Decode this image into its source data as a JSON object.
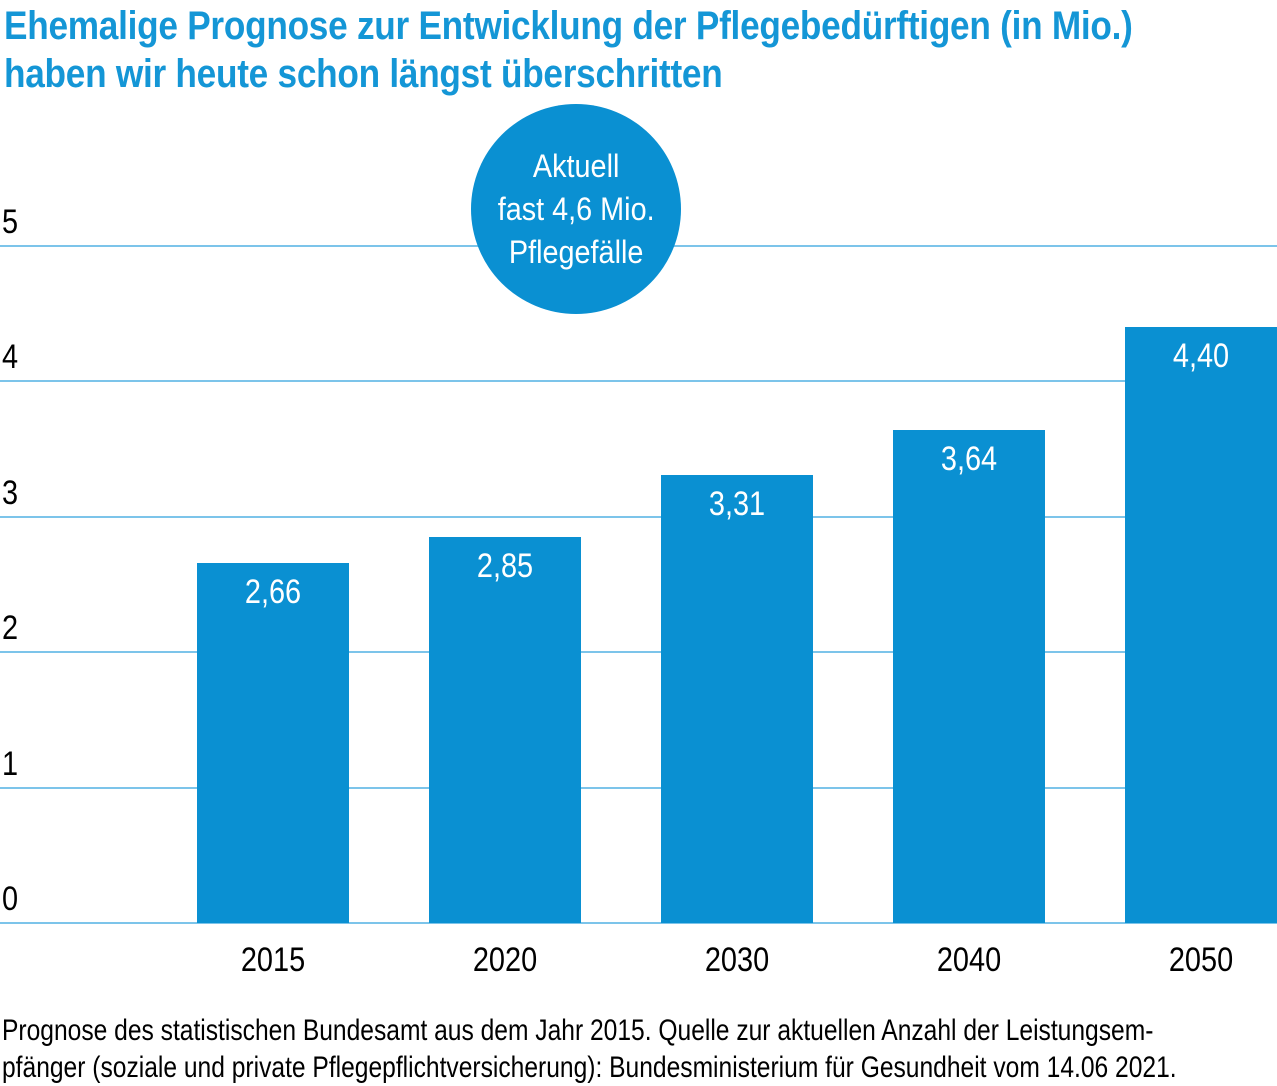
{
  "title": {
    "line1": "Ehemalige Prognose zur Entwicklung der Pflegebedürftigen (in Mio.)",
    "line2": "haben wir heute schon längst überschritten"
  },
  "badge": {
    "line1": "Aktuell",
    "line2": "fast 4,6 Mio.",
    "line3": "Pflegefälle"
  },
  "chart_data": {
    "type": "bar",
    "categories": [
      "2015",
      "2020",
      "2030",
      "2040",
      "2050"
    ],
    "values": [
      2.66,
      2.85,
      3.31,
      3.64,
      4.4
    ],
    "value_labels": [
      "2,66",
      "2,85",
      "3,31",
      "3,64",
      "4,40"
    ],
    "title": "Ehemalige Prognose zur Entwicklung der Pflegebedürftigen (in Mio.) haben wir heute schon längst überschritten",
    "annotation": "Aktuell fast 4,6 Mio. Pflegefälle",
    "xlabel": "",
    "ylabel": "",
    "ylim": [
      0,
      5
    ],
    "yticks": [
      0,
      1,
      2,
      3,
      4,
      5
    ],
    "grid": true,
    "legend": false
  },
  "footer": {
    "line1": "Prognose des statistischen Bundesamt aus dem Jahr 2015. Quelle zur aktuellen Anzahl der Leistungsem-",
    "line2": "pfänger (soziale und private Pflegepflichtversicherung): Bundesministerium für Gesundheit vom 14.06 2021."
  },
  "colors": {
    "bar": "#0a90d2",
    "badge": "#0a90d2",
    "title_text": "#1496d6",
    "gridline": "#7cc4ea",
    "axis_text": "#000000",
    "value_text": "#ffffff",
    "background": "#ffffff"
  }
}
